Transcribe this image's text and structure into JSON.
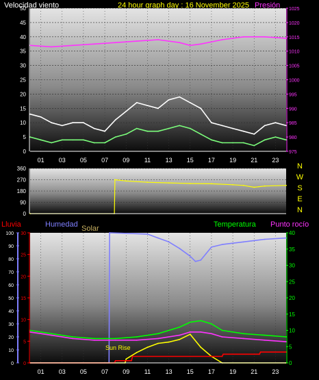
{
  "header": {
    "wind_speed_label": "Velocidad viento",
    "date_title": "24 hour graph day : 16 November 2025",
    "pressure_label": "Presión"
  },
  "compass": {
    "labels": [
      "N",
      "W",
      "S",
      "E",
      "N"
    ]
  },
  "bottom_header": {
    "rain_label": "Lluvia",
    "humidity_label": "Humedad",
    "solar_label": "Solar",
    "temperature_label": "Temperatura",
    "dew_point_label": "Punto rocío"
  },
  "annotations": {
    "sun_rise": "Sun Rise"
  },
  "colors": {
    "wind_gust": "#ffffff",
    "wind_avg": "#7cff7c",
    "pressure": "#ff33ff",
    "direction": "#ffff00",
    "rain": "#ff0000",
    "humidity": "#7f7fff",
    "solar": "#ffff00",
    "temperature": "#00ff00",
    "dew_point": "#ff33ff",
    "rain_rate": "#ff4040",
    "panel_top": "#dcdcdc",
    "panel_bottom": "#101010"
  },
  "chart_data": [
    {
      "type": "line",
      "title": "24 hour graph day : 16 November 2025",
      "x_ticks": [
        "01",
        "03",
        "05",
        "07",
        "09",
        "11",
        "13",
        "15",
        "17",
        "19",
        "21",
        "23"
      ],
      "xlim": [
        0,
        24
      ],
      "y_left": {
        "label": "Velocidad viento",
        "lim": [
          0,
          50
        ],
        "ticks": [
          0,
          5,
          10,
          15,
          20,
          25,
          30,
          35,
          40,
          45,
          50
        ]
      },
      "y_right": {
        "label": "Presión",
        "lim": [
          975,
          1025
        ],
        "ticks": [
          975,
          980,
          985,
          990,
          995,
          1000,
          1005,
          1010,
          1015,
          1020,
          1025
        ]
      },
      "series": [
        {
          "name": "",
          "axis": "right",
          "color": "#ff33ff",
          "x": [
            0,
            2,
            4,
            6,
            8,
            10,
            12,
            14,
            15,
            16,
            18,
            20,
            22,
            24
          ],
          "values": [
            1012,
            1011.5,
            1012,
            1012.5,
            1013,
            1013.5,
            1014,
            1013,
            1012,
            1012.5,
            1014,
            1015,
            1015,
            1014.5
          ]
        },
        {
          "name": "",
          "axis": "left",
          "color": "#ffffff",
          "x": [
            0,
            1,
            2,
            3,
            4,
            5,
            6,
            7,
            8,
            9,
            10,
            11,
            12,
            13,
            14,
            15,
            16,
            17,
            18,
            19,
            20,
            21,
            22,
            23,
            24
          ],
          "values": [
            13,
            12,
            10,
            9,
            10,
            10,
            8,
            7,
            11,
            14,
            17,
            16,
            15,
            18,
            19,
            17,
            15,
            10,
            9,
            8,
            7,
            6,
            9,
            10,
            9
          ]
        },
        {
          "name": "",
          "axis": "left",
          "color": "#7cff7c",
          "x": [
            0,
            1,
            2,
            3,
            4,
            5,
            6,
            7,
            8,
            9,
            10,
            11,
            12,
            13,
            14,
            15,
            16,
            17,
            18,
            19,
            20,
            21,
            22,
            23,
            24
          ],
          "values": [
            5,
            4,
            3,
            4,
            4,
            4,
            3,
            3,
            5,
            6,
            8,
            7,
            7,
            8,
            9,
            8,
            6,
            4,
            3,
            3,
            3,
            2,
            4,
            5,
            4
          ]
        }
      ]
    },
    {
      "type": "line",
      "x_ticks": [],
      "xlim": [
        0,
        24
      ],
      "y_left": {
        "lim": [
          0,
          360
        ],
        "ticks": [
          0,
          90,
          180,
          270,
          360
        ]
      },
      "series": [
        {
          "name": "",
          "axis": "left",
          "color": "#ffff00",
          "x": [
            0,
            7.9,
            7.95,
            9,
            11,
            13,
            15,
            17,
            19,
            20,
            21,
            22,
            24
          ],
          "values": [
            0,
            0,
            270,
            260,
            250,
            245,
            240,
            238,
            230,
            225,
            210,
            220,
            225
          ]
        }
      ]
    },
    {
      "type": "line",
      "x_ticks": [
        "01",
        "03",
        "05",
        "07",
        "09",
        "11",
        "13",
        "15",
        "17",
        "19",
        "21",
        "23"
      ],
      "xlim": [
        0,
        24
      ],
      "y_left_outer": {
        "label": "Lluvia",
        "lim": [
          0,
          100
        ],
        "ticks": [
          0,
          10,
          20,
          30,
          40,
          50,
          60,
          70,
          80,
          90,
          100
        ]
      },
      "y_left_inner": {
        "label": "Humedad",
        "lim": [
          0,
          30
        ],
        "ticks": [
          0,
          5,
          10,
          15,
          20,
          25,
          30
        ]
      },
      "y_right": {
        "label": "Temperatura",
        "lim": [
          0,
          40
        ],
        "ticks": [
          0,
          5,
          10,
          15,
          20,
          25,
          30,
          35,
          40
        ]
      },
      "series": [
        {
          "name": "",
          "axis": "left_outer",
          "color": "#7f7fff",
          "x": [
            0,
            7.4,
            7.45,
            11,
            12,
            13,
            14,
            15,
            15.5,
            16,
            16.5,
            17,
            18,
            20,
            22,
            24
          ],
          "values": [
            0,
            0,
            100,
            99,
            96,
            93,
            88,
            82,
            78,
            79,
            84,
            89,
            91,
            93,
            95,
            96
          ]
        },
        {
          "name": "",
          "axis": "right",
          "color": "#00ff00",
          "x": [
            0,
            2,
            4,
            6,
            8,
            10,
            12,
            14,
            15,
            16,
            17,
            18,
            20,
            22,
            24
          ],
          "values": [
            10,
            9,
            8,
            7.5,
            7.5,
            8,
            9,
            11,
            12.5,
            13,
            12,
            10,
            9,
            8.5,
            8
          ]
        },
        {
          "name": "",
          "axis": "right",
          "color": "#ff33ff",
          "x": [
            0,
            2,
            4,
            6,
            8,
            10,
            12,
            14,
            15,
            16,
            17,
            18,
            20,
            22,
            24
          ],
          "values": [
            9.5,
            8.5,
            7.5,
            7,
            7,
            7,
            7.5,
            8.5,
            9.5,
            9.5,
            9,
            8,
            7.5,
            7,
            6.5
          ]
        },
        {
          "name": "",
          "axis": "left_outer",
          "color": "#ffff00",
          "x": [
            0,
            8.9,
            9,
            10,
            11,
            12,
            13,
            14,
            15,
            16,
            17,
            18,
            24
          ],
          "values": [
            0,
            0,
            3,
            8,
            12,
            15,
            16,
            18,
            22,
            12,
            5,
            0,
            0
          ]
        },
        {
          "name": "",
          "axis": "left_inner",
          "color": "#ff0000",
          "x": [
            0,
            7.9,
            8,
            9.5,
            9.6,
            18,
            18.1,
            21.5,
            21.6,
            24
          ],
          "values": [
            0,
            0,
            0.5,
            0.5,
            1.5,
            1.5,
            2,
            2,
            2.5,
            2.5
          ]
        }
      ]
    }
  ]
}
